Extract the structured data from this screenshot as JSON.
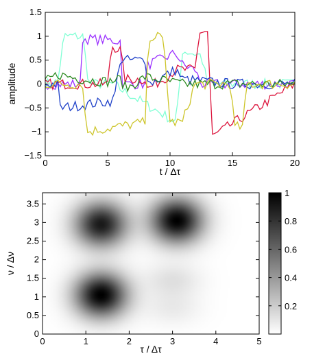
{
  "chart_data": [
    {
      "type": "line",
      "xlabel": "t / Δτ",
      "ylabel": "amplitude",
      "xlim": [
        0,
        20
      ],
      "ylim": [
        -1.5,
        1.5
      ],
      "x_ticks": [
        0,
        5,
        10,
        15,
        20
      ],
      "y_ticks": [
        -1.5,
        -1,
        -0.5,
        0,
        0.5,
        1,
        1.5
      ],
      "x_tick_labels": [
        "0",
        "5",
        "10",
        "15",
        "20"
      ],
      "y_tick_labels": [
        "−1.5",
        "−1",
        "−0.5",
        "0",
        "0.5",
        "1",
        "1.5"
      ],
      "grid": false,
      "series": [
        {
          "color": "#7fffd4",
          "x": [
            0,
            1,
            1.5,
            3,
            3.5,
            5.5,
            6,
            10.5,
            11,
            12.5,
            13,
            20
          ],
          "values": [
            0,
            0.05,
            1,
            1,
            0,
            0,
            -0.1,
            -0.8,
            0.7,
            0.6,
            0,
            0
          ]
        },
        {
          "color": "#9b30ff",
          "x": [
            0,
            2.9,
            3,
            6,
            6.2,
            8,
            8.2,
            10.5,
            11,
            12,
            12.5,
            20
          ],
          "values": [
            0,
            0,
            0.95,
            0.9,
            0,
            0,
            0.4,
            0.65,
            0.4,
            0.3,
            0,
            0
          ]
        },
        {
          "color": "#dc143c",
          "x": [
            0,
            5,
            5.3,
            6.1,
            6.3,
            8,
            8.2,
            10,
            10.4,
            12,
            12.4,
            13,
            13.4,
            20
          ],
          "values": [
            0,
            0,
            0.8,
            0.7,
            0.1,
            0.1,
            -0.1,
            0.2,
            0.3,
            0.3,
            1.1,
            1.1,
            -1.1,
            0
          ]
        },
        {
          "color": "#1e40c8",
          "x": [
            0,
            1,
            1.2,
            5.5,
            6,
            8,
            8.3,
            10.5,
            11,
            15,
            20
          ],
          "values": [
            0,
            0,
            -0.5,
            -0.35,
            0.5,
            0.5,
            0,
            0.3,
            0.1,
            0,
            0
          ]
        },
        {
          "color": "#2e8b22",
          "x": [
            0,
            1,
            3,
            5,
            6,
            6.5,
            8,
            10,
            11,
            20
          ],
          "values": [
            0.05,
            0.2,
            0.1,
            0.05,
            0.1,
            -0.1,
            0.15,
            0.05,
            0,
            0
          ]
        },
        {
          "color": "#cdc52a",
          "x": [
            0,
            3,
            3.3,
            8,
            8.3,
            9,
            9.5,
            10,
            11,
            12,
            14.8,
            15.2,
            15.8,
            16.2,
            20
          ],
          "values": [
            0,
            0,
            -1,
            -0.8,
            1,
            1,
            0.9,
            -0.8,
            -0.8,
            0,
            0,
            -0.9,
            -0.9,
            0,
            0
          ]
        }
      ]
    },
    {
      "type": "heatmap",
      "xlabel": "τ / Δτ",
      "ylabel": "ν / Δν",
      "xlim": [
        0,
        5
      ],
      "ylim": [
        0,
        3.8
      ],
      "x_ticks": [
        0,
        1,
        2,
        3,
        4,
        5
      ],
      "y_ticks": [
        0,
        0.5,
        1,
        1.5,
        2,
        2.5,
        3,
        3.5
      ],
      "x_tick_labels": [
        "0",
        "1",
        "2",
        "3",
        "4",
        "5"
      ],
      "y_tick_labels": [
        "0",
        "0.5",
        "1",
        "1.5",
        "2",
        "2.5",
        "3",
        "3.5"
      ],
      "colormap": "gray_r",
      "colorbar": {
        "range": [
          0,
          1
        ],
        "ticks": [
          0.2,
          0.4,
          0.6,
          0.8,
          1
        ],
        "tick_labels": [
          "0.2",
          "0.4",
          "0.6",
          "0.8",
          "1"
        ]
      },
      "peaks": [
        {
          "x": 1.35,
          "y": 1.05,
          "amplitude": 1.0,
          "sigma_x": 0.42,
          "sigma_y": 0.42
        },
        {
          "x": 1.35,
          "y": 2.95,
          "amplitude": 0.9,
          "sigma_x": 0.42,
          "sigma_y": 0.42
        },
        {
          "x": 3.1,
          "y": 3.05,
          "amplitude": 1.0,
          "sigma_x": 0.42,
          "sigma_y": 0.42
        },
        {
          "x": 3.0,
          "y": 1.45,
          "amplitude": 0.12,
          "sigma_x": 0.45,
          "sigma_y": 0.32
        },
        {
          "x": 3.0,
          "y": 0.7,
          "amplitude": 0.08,
          "sigma_x": 0.45,
          "sigma_y": 0.32
        }
      ]
    }
  ]
}
